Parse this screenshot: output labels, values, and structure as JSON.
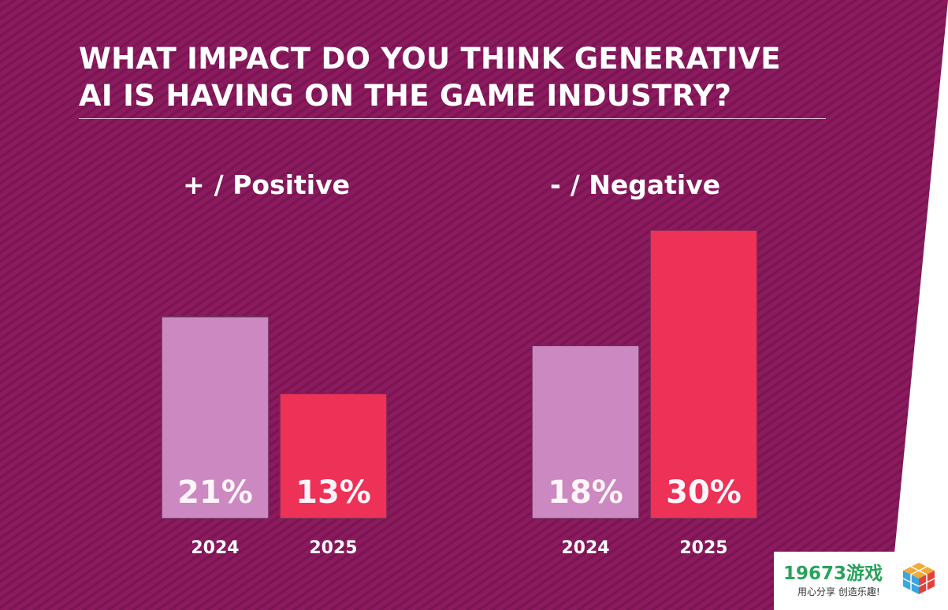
{
  "chart_data": {
    "type": "bar",
    "title": "WHAT IMPACT DO YOU THINK GENERATIVE AI IS HAVING ON THE GAME INDUSTRY?",
    "title_lines": [
      "WHAT IMPACT DO YOU THINK GENERATIVE",
      "AI IS HAVING ON THE GAME INDUSTRY?"
    ],
    "groups": [
      {
        "sign": "+",
        "label": "/ Positive",
        "categories": [
          "2024",
          "2025"
        ],
        "values": [
          21,
          13
        ],
        "value_labels": [
          "21%",
          "13%"
        ]
      },
      {
        "sign": "-",
        "label": "/ Negative",
        "categories": [
          "2024",
          "2025"
        ],
        "values": [
          18,
          30
        ],
        "value_labels": [
          "18%",
          "30%"
        ]
      }
    ],
    "series_colors": {
      "2024": "#cc88c0",
      "2025": "#ee3157"
    },
    "ylim": [
      0,
      30
    ],
    "grid": false,
    "legend": "none"
  },
  "theme": {
    "background": "#8b1a5e",
    "stripe": "#7a1552",
    "text": "#ffffff"
  },
  "watermark": {
    "brand": "19673游戏",
    "tagline": "用心分享 创造乐趣!"
  }
}
